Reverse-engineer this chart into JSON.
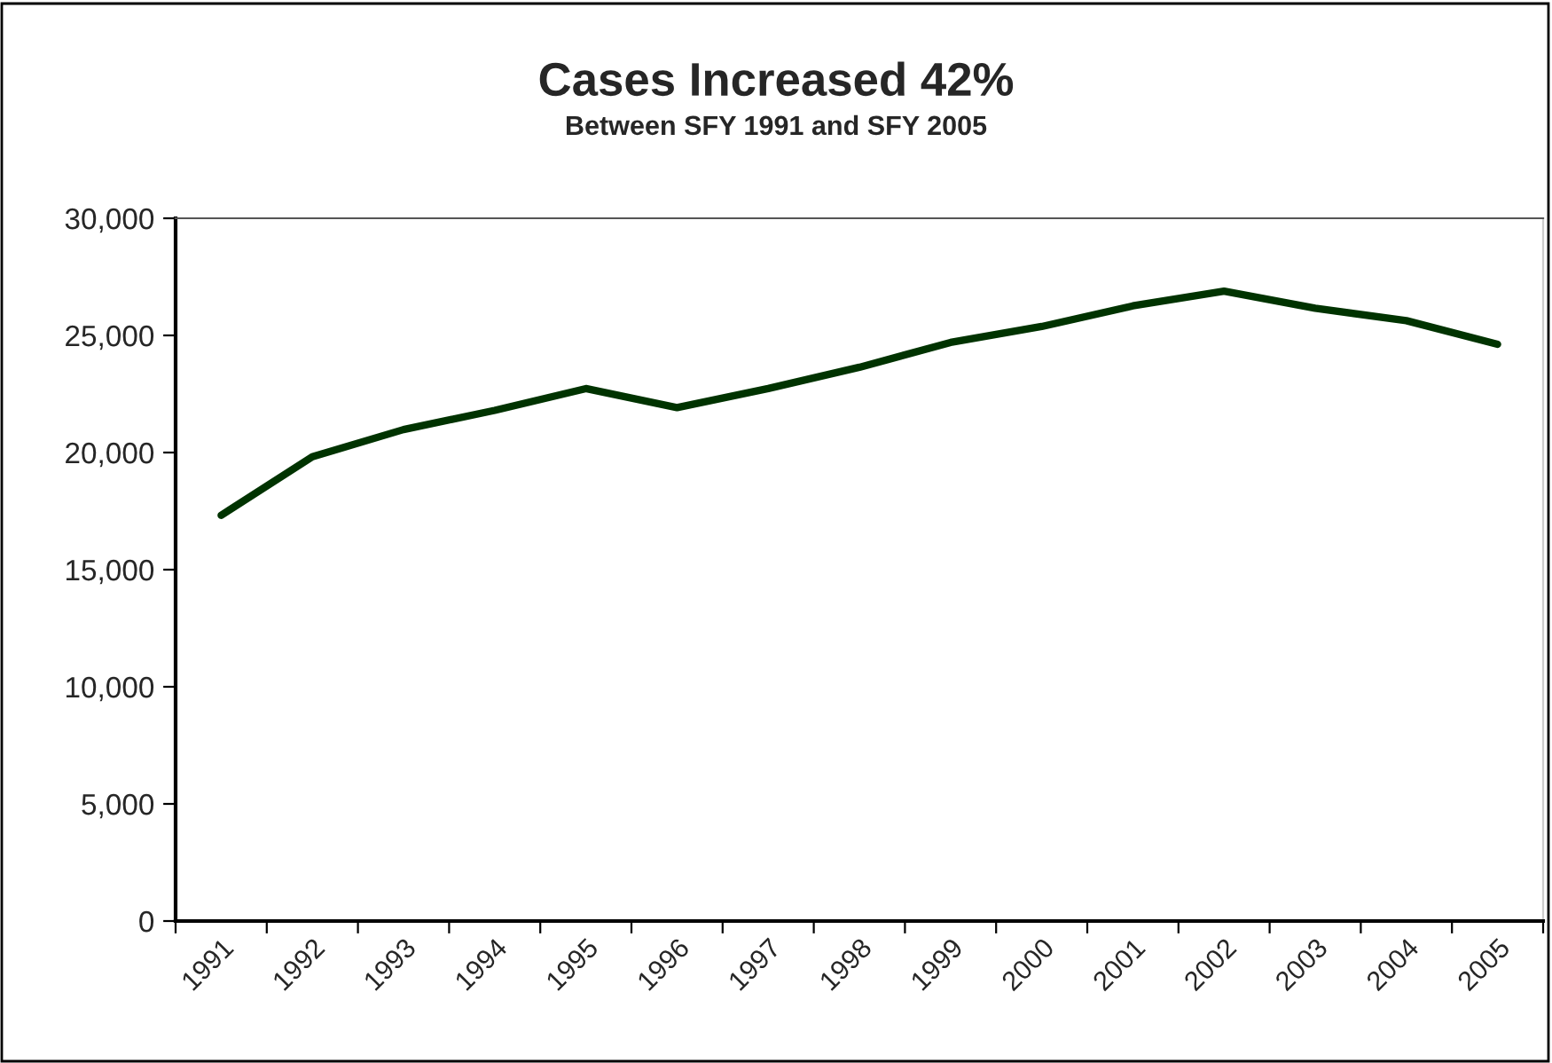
{
  "chart_data": {
    "type": "line",
    "title": "Cases Increased 42%",
    "subtitle": "Between SFY 1991 and SFY 2005",
    "categories": [
      "1991",
      "1992",
      "1993",
      "1994",
      "1995",
      "1996",
      "1997",
      "1998",
      "1999",
      "2000",
      "2001",
      "2002",
      "2003",
      "2004",
      "2005"
    ],
    "series": [
      {
        "color": "#003300",
        "values": [
          17320,
          19820,
          20980,
          21800,
          22730,
          21920,
          22730,
          23640,
          24700,
          25380,
          26260,
          26890,
          26160,
          25630,
          24620
        ]
      }
    ],
    "ylim": [
      0,
      30000
    ],
    "yticks": [
      {
        "value": 0,
        "label": "0"
      },
      {
        "value": 5000,
        "label": "5,000"
      },
      {
        "value": 10000,
        "label": "10,000"
      },
      {
        "value": 15000,
        "label": "15,000"
      },
      {
        "value": 20000,
        "label": "20,000"
      },
      {
        "value": 25000,
        "label": "25,000"
      },
      {
        "value": 30000,
        "label": "30,000"
      }
    ],
    "grid": false,
    "legend": false,
    "marker": "none",
    "line_style": "solid"
  }
}
